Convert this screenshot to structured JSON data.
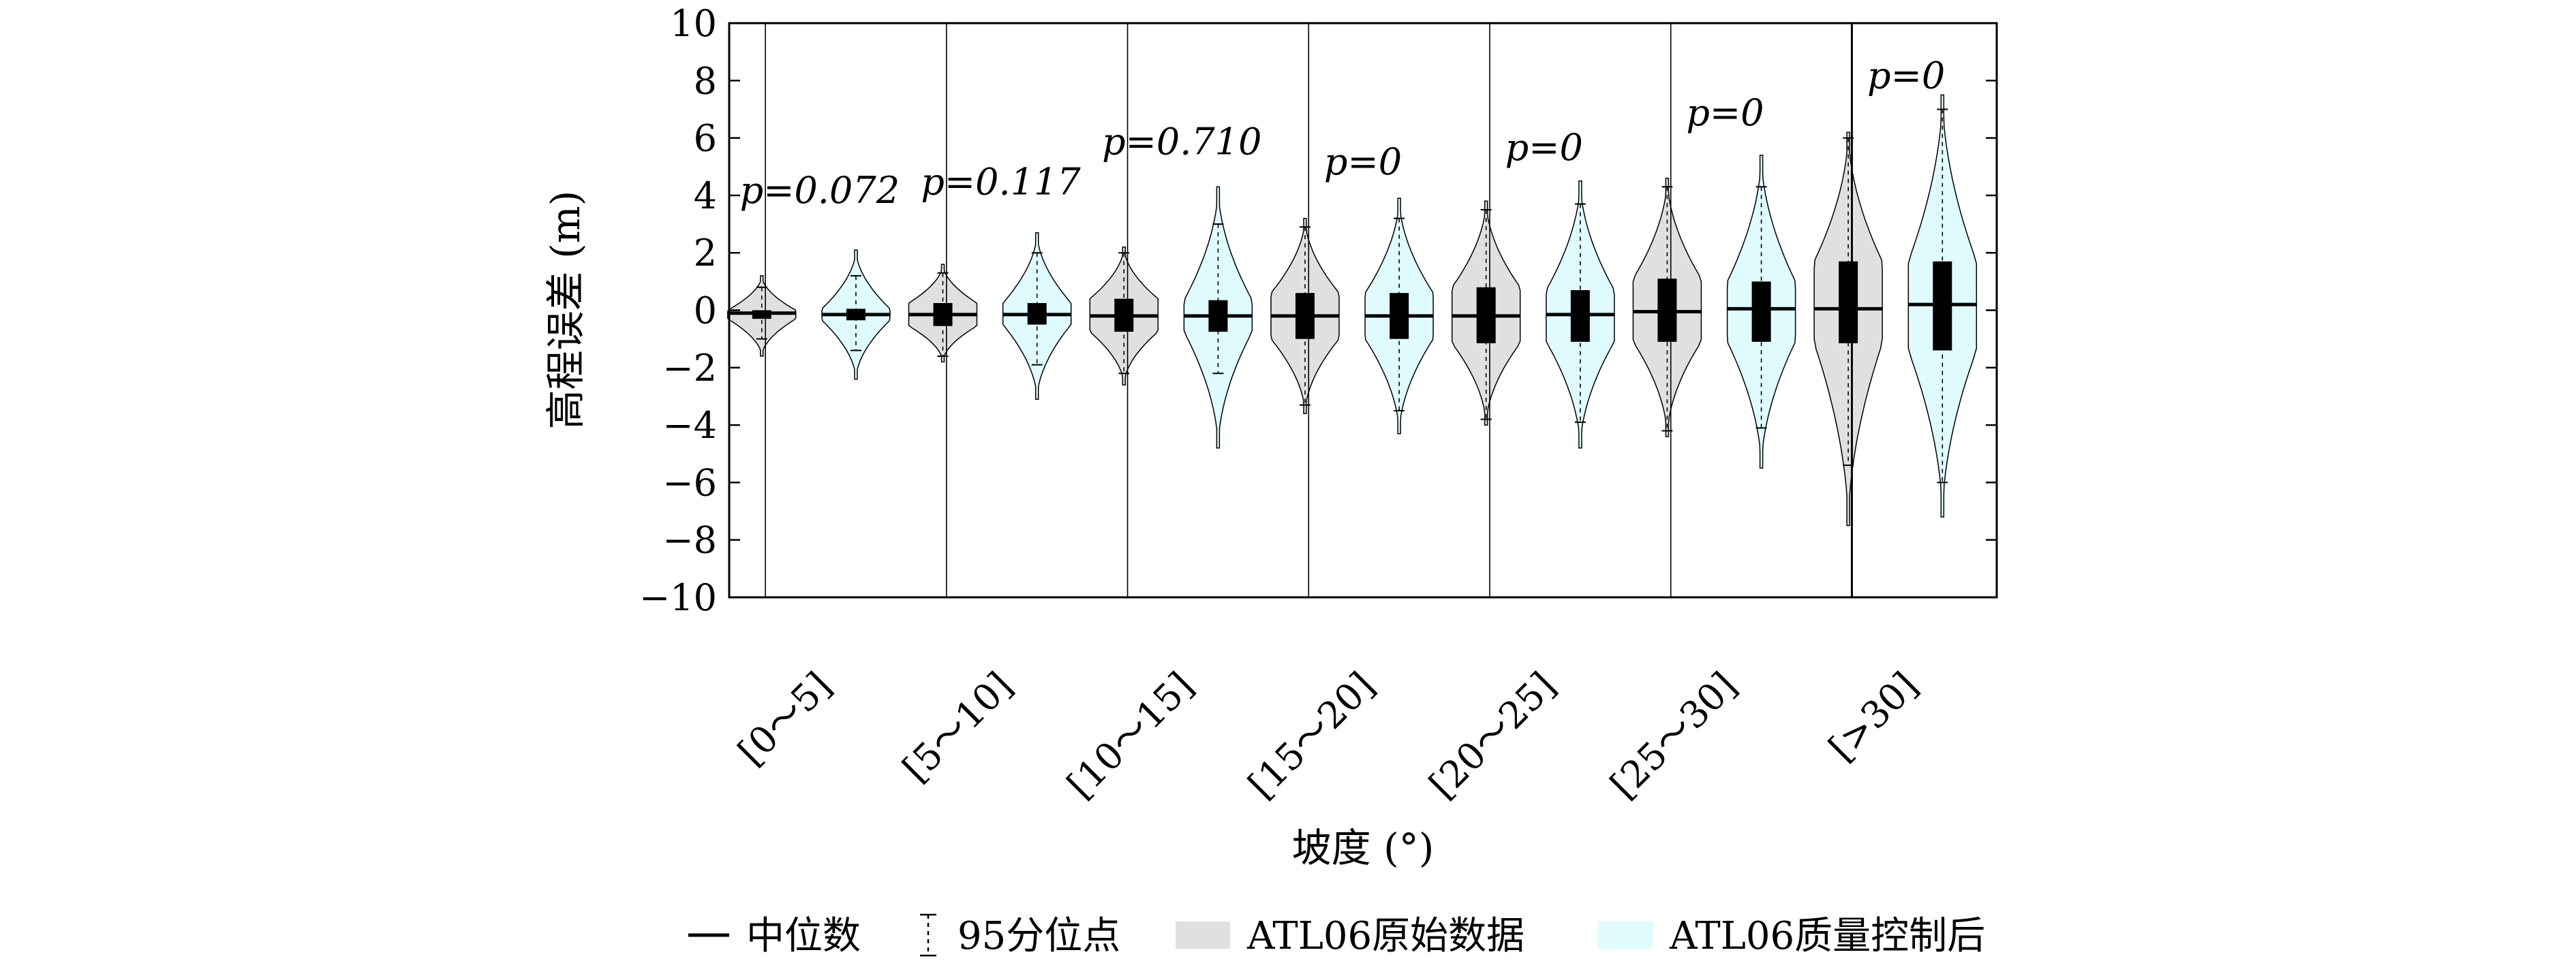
{
  "chart_data": {
    "type": "violin",
    "title": "",
    "xlabel": "坡度 (°)",
    "ylabel": "高程误差 (m)",
    "ylim": [
      -10,
      10
    ],
    "yticks": [
      10,
      8,
      6,
      4,
      2,
      0,
      -2,
      -4,
      -6,
      -8,
      -10
    ],
    "grid": false,
    "legend_position": "bottom",
    "categories": [
      "[0～5]",
      "[5～10]",
      "[10～15]",
      "[15～20]",
      "[20～25]",
      "[25～30]",
      "[>30]"
    ],
    "p_values": [
      "p=0.072",
      "p=0.117",
      "p=0.710",
      "p=0",
      "p=0",
      "p=0",
      "p=0"
    ],
    "legend": {
      "median": "中位数",
      "percentile95": "95分位点",
      "raw": "ATL06原始数据",
      "qc": "ATL06质量控制后"
    },
    "colors": {
      "raw": "#e0e0e0",
      "qc": "#dffbfd",
      "box": "#000000"
    },
    "series": [
      {
        "name": "ATL06原始数据",
        "median": [
          -0.1,
          -0.15,
          -0.2,
          -0.2,
          -0.2,
          -0.05,
          0.05
        ],
        "q1": [
          -0.3,
          -0.55,
          -0.75,
          -1.0,
          -1.15,
          -1.1,
          -1.15
        ],
        "q3": [
          0.0,
          0.25,
          0.4,
          0.6,
          0.8,
          1.1,
          1.7
        ],
        "p025": [
          -1.0,
          -1.6,
          -2.2,
          -3.3,
          -3.8,
          -4.2,
          -5.4
        ],
        "p975": [
          0.8,
          1.3,
          2.0,
          2.9,
          3.5,
          4.3,
          6.0
        ],
        "vmin": [
          -1.6,
          -1.8,
          -2.6,
          -3.6,
          -4.0,
          -4.4,
          -7.5
        ],
        "vmax": [
          1.2,
          1.6,
          2.2,
          3.2,
          3.8,
          4.6,
          6.2
        ]
      },
      {
        "name": "ATL06质量控制后",
        "median": [
          -0.15,
          -0.15,
          -0.2,
          -0.2,
          -0.15,
          0.05,
          0.2
        ],
        "q1": [
          -0.35,
          -0.5,
          -0.75,
          -1.0,
          -1.1,
          -1.1,
          -1.4
        ],
        "q3": [
          0.05,
          0.25,
          0.35,
          0.6,
          0.7,
          1.0,
          1.7
        ],
        "p025": [
          -1.4,
          -1.9,
          -2.2,
          -3.5,
          -3.9,
          -4.1,
          -6.0
        ],
        "p975": [
          1.2,
          2.0,
          3.0,
          3.2,
          3.7,
          4.3,
          7.0
        ],
        "vmin": [
          -2.4,
          -3.1,
          -4.8,
          -4.3,
          -4.8,
          -5.5,
          -7.2
        ],
        "vmax": [
          2.1,
          2.7,
          4.3,
          3.9,
          4.5,
          5.4,
          7.5
        ]
      }
    ]
  }
}
